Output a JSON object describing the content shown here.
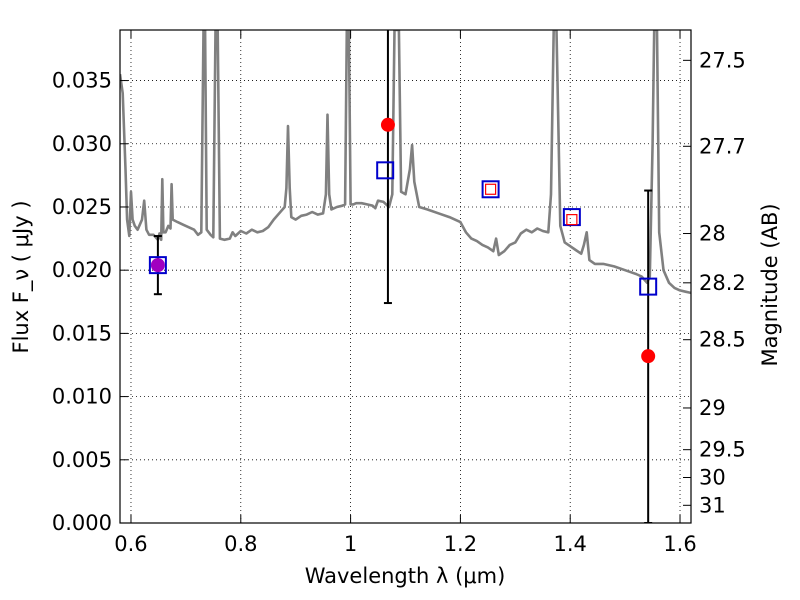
{
  "chart_data": {
    "type": "scatter",
    "xlabel": "Wavelength  λ (μm)",
    "ylabel": "Flux  F_ν  ( μJy )",
    "ylabel_right": "Magnitude (AB)",
    "xlim": [
      0.58,
      1.62
    ],
    "ylim": [
      0.0,
      0.039
    ],
    "grid": true,
    "x_ticks": [
      0.6,
      0.8,
      1.0,
      1.2,
      1.4,
      1.6
    ],
    "x_tick_labels": [
      "0.6",
      "0.8",
      "1",
      "1.2",
      "1.4",
      "1.6"
    ],
    "y_ticks": [
      0.0,
      0.005,
      0.01,
      0.015,
      0.02,
      0.025,
      0.03,
      0.035
    ],
    "y_tick_labels": [
      "0.000",
      "0.005",
      "0.010",
      "0.015",
      "0.020",
      "0.025",
      "0.030",
      "0.035"
    ],
    "right_ticks": [
      {
        "label": "27.5",
        "flux": 0.0366
      },
      {
        "label": "27.7",
        "flux": 0.0298
      },
      {
        "label": "28",
        "flux": 0.0229
      },
      {
        "label": "28.2",
        "flux": 0.019
      },
      {
        "label": "28.5",
        "flux": 0.0145
      },
      {
        "label": "29",
        "flux": 0.0091
      },
      {
        "label": "29.5",
        "flux": 0.0058
      },
      {
        "label": "30",
        "flux": 0.0036
      },
      {
        "label": "31",
        "flux": 0.0014
      }
    ],
    "series": [
      {
        "name": "model spectrum",
        "kind": "line",
        "color": "#808080",
        "points": [
          [
            0.58,
            0.0355
          ],
          [
            0.585,
            0.034
          ],
          [
            0.59,
            0.028
          ],
          [
            0.593,
            0.024
          ],
          [
            0.597,
            0.0227
          ],
          [
            0.6,
            0.0262
          ],
          [
            0.603,
            0.024
          ],
          [
            0.607,
            0.0235
          ],
          [
            0.612,
            0.0232
          ],
          [
            0.616,
            0.0236
          ],
          [
            0.62,
            0.024
          ],
          [
            0.624,
            0.0255
          ],
          [
            0.628,
            0.0232
          ],
          [
            0.633,
            0.0228
          ],
          [
            0.637,
            0.0228
          ],
          [
            0.641,
            0.0228
          ],
          [
            0.645,
            0.0226
          ],
          [
            0.649,
            0.0224
          ],
          [
            0.652,
            0.0229
          ],
          [
            0.655,
            0.0224
          ],
          [
            0.657,
            0.0272
          ],
          [
            0.659,
            0.023
          ],
          [
            0.663,
            0.023
          ],
          [
            0.668,
            0.0235
          ],
          [
            0.672,
            0.0233
          ],
          [
            0.674,
            0.0268
          ],
          [
            0.676,
            0.024
          ],
          [
            0.685,
            0.0238
          ],
          [
            0.695,
            0.0236
          ],
          [
            0.705,
            0.0234
          ],
          [
            0.715,
            0.0232
          ],
          [
            0.722,
            0.0228
          ],
          [
            0.728,
            0.023
          ],
          [
            0.732,
            0.039
          ],
          [
            0.735,
            0.039
          ],
          [
            0.738,
            0.0232
          ],
          [
            0.745,
            0.0228
          ],
          [
            0.75,
            0.0226
          ],
          [
            0.754,
            0.039
          ],
          [
            0.758,
            0.039
          ],
          [
            0.762,
            0.0225
          ],
          [
            0.77,
            0.0224
          ],
          [
            0.78,
            0.0225
          ],
          [
            0.785,
            0.023
          ],
          [
            0.79,
            0.0227
          ],
          [
            0.8,
            0.0231
          ],
          [
            0.81,
            0.0229
          ],
          [
            0.82,
            0.0232
          ],
          [
            0.83,
            0.023
          ],
          [
            0.84,
            0.0231
          ],
          [
            0.85,
            0.0234
          ],
          [
            0.86,
            0.024
          ],
          [
            0.87,
            0.0245
          ],
          [
            0.88,
            0.025
          ],
          [
            0.883,
            0.0265
          ],
          [
            0.886,
            0.0314
          ],
          [
            0.889,
            0.0265
          ],
          [
            0.892,
            0.0242
          ],
          [
            0.9,
            0.024
          ],
          [
            0.91,
            0.0243
          ],
          [
            0.92,
            0.0244
          ],
          [
            0.93,
            0.0246
          ],
          [
            0.94,
            0.0244
          ],
          [
            0.95,
            0.0245
          ],
          [
            0.955,
            0.026
          ],
          [
            0.958,
            0.0323
          ],
          [
            0.961,
            0.026
          ],
          [
            0.965,
            0.0248
          ],
          [
            0.975,
            0.025
          ],
          [
            0.985,
            0.0251
          ],
          [
            0.99,
            0.0252
          ],
          [
            0.993,
            0.039
          ],
          [
            0.997,
            0.039
          ],
          [
            1.0,
            0.0252
          ],
          [
            1.005,
            0.0252
          ],
          [
            1.01,
            0.0253
          ],
          [
            1.02,
            0.0253
          ],
          [
            1.03,
            0.0252
          ],
          [
            1.04,
            0.0251
          ],
          [
            1.045,
            0.0249
          ],
          [
            1.05,
            0.0255
          ],
          [
            1.06,
            0.0254
          ],
          [
            1.07,
            0.025
          ],
          [
            1.076,
            0.026
          ],
          [
            1.08,
            0.039
          ],
          [
            1.088,
            0.039
          ],
          [
            1.092,
            0.0262
          ],
          [
            1.1,
            0.026
          ],
          [
            1.108,
            0.028
          ],
          [
            1.112,
            0.0299
          ],
          [
            1.116,
            0.027
          ],
          [
            1.125,
            0.025
          ],
          [
            1.14,
            0.0248
          ],
          [
            1.16,
            0.0245
          ],
          [
            1.18,
            0.0242
          ],
          [
            1.2,
            0.0238
          ],
          [
            1.21,
            0.023
          ],
          [
            1.22,
            0.0225
          ],
          [
            1.23,
            0.0223
          ],
          [
            1.24,
            0.022
          ],
          [
            1.25,
            0.0218
          ],
          [
            1.26,
            0.0215
          ],
          [
            1.265,
            0.0225
          ],
          [
            1.27,
            0.0212
          ],
          [
            1.28,
            0.0215
          ],
          [
            1.29,
            0.022
          ],
          [
            1.3,
            0.0222
          ],
          [
            1.31,
            0.0229
          ],
          [
            1.32,
            0.0232
          ],
          [
            1.33,
            0.023
          ],
          [
            1.34,
            0.0233
          ],
          [
            1.35,
            0.0231
          ],
          [
            1.36,
            0.023
          ],
          [
            1.365,
            0.026
          ],
          [
            1.37,
            0.039
          ],
          [
            1.375,
            0.039
          ],
          [
            1.382,
            0.0235
          ],
          [
            1.39,
            0.0222
          ],
          [
            1.4,
            0.0219
          ],
          [
            1.41,
            0.0216
          ],
          [
            1.42,
            0.0213
          ],
          [
            1.425,
            0.022
          ],
          [
            1.43,
            0.023
          ],
          [
            1.435,
            0.0208
          ],
          [
            1.445,
            0.0205
          ],
          [
            1.46,
            0.0205
          ],
          [
            1.48,
            0.0203
          ],
          [
            1.5,
            0.02
          ],
          [
            1.52,
            0.0197
          ],
          [
            1.53,
            0.0195
          ],
          [
            1.54,
            0.019
          ],
          [
            1.545,
            0.0195
          ],
          [
            1.55,
            0.03
          ],
          [
            1.553,
            0.039
          ],
          [
            1.558,
            0.039
          ],
          [
            1.562,
            0.023
          ],
          [
            1.57,
            0.02
          ],
          [
            1.58,
            0.019
          ],
          [
            1.59,
            0.0186
          ],
          [
            1.6,
            0.0184
          ],
          [
            1.61,
            0.0183
          ],
          [
            1.62,
            0.0182
          ]
        ]
      },
      {
        "name": "observed photometry",
        "kind": "points-with-errorbars",
        "color": "#ff0000",
        "points": [
          {
            "x": 0.649,
            "y": 0.0204,
            "yerr_low": 0.0023,
            "yerr_high": 0.0023
          },
          {
            "x": 1.068,
            "y": 0.0315,
            "yerr_low": 0.0141,
            "yerr_high": 0.0118
          },
          {
            "x": 1.542,
            "y": 0.0132,
            "yerr_low": 0.0132,
            "yerr_high": 0.0131
          }
        ]
      },
      {
        "name": "model photometry (open blue squares)",
        "kind": "markers",
        "color": "#0000cc",
        "points": [
          {
            "x": 0.649,
            "y": 0.0204
          },
          {
            "x": 1.063,
            "y": 0.0279
          },
          {
            "x": 1.255,
            "y": 0.0264
          },
          {
            "x": 1.403,
            "y": 0.0242
          },
          {
            "x": 1.542,
            "y": 0.0187
          }
        ]
      },
      {
        "name": "open red squares",
        "kind": "markers",
        "color": "#ff0000",
        "points": [
          {
            "x": 1.255,
            "y": 0.0264
          },
          {
            "x": 1.403,
            "y": 0.024
          }
        ]
      },
      {
        "name": "purple marker",
        "kind": "markers",
        "color": "#a000c0",
        "points": [
          {
            "x": 0.649,
            "y": 0.0204
          }
        ]
      }
    ]
  }
}
